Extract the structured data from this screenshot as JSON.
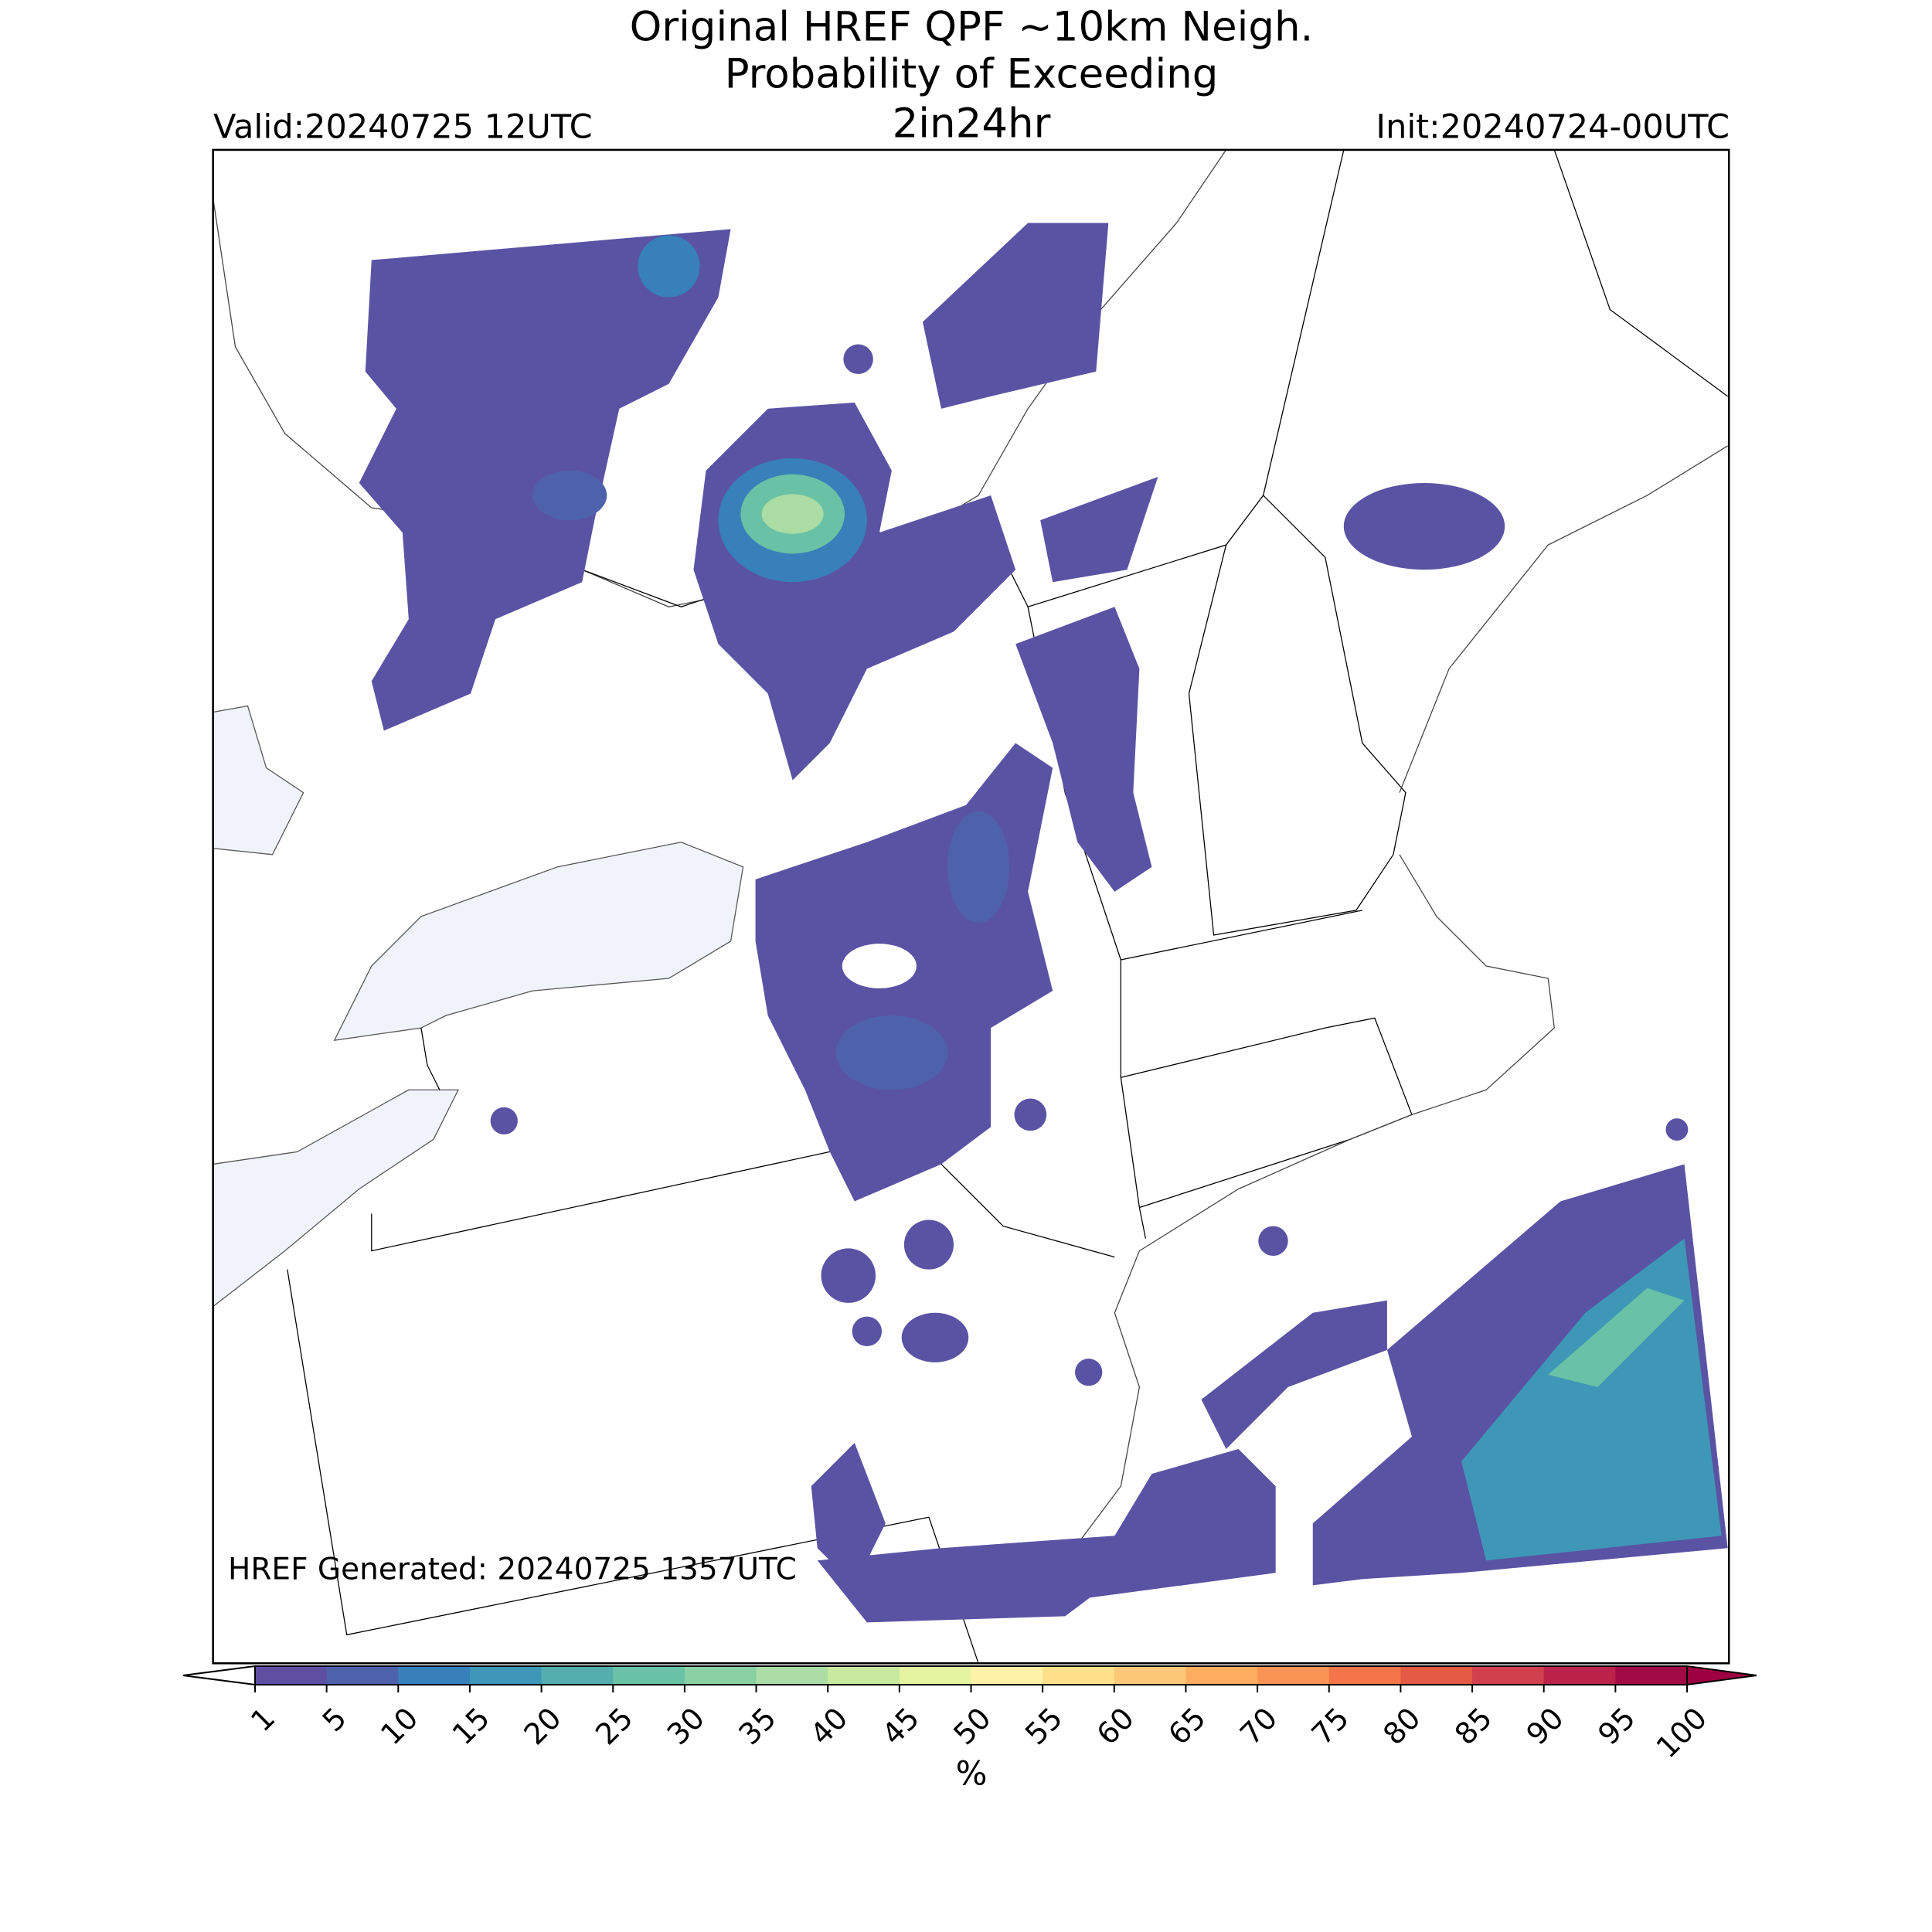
{
  "header": {
    "title_lines": [
      "Original HREF QPF ~10km Neigh.",
      "Probability of Exceeding",
      "2in24hr"
    ],
    "valid": "Valid:20240725 12UTC",
    "init": "Init:20240724-00UTC"
  },
  "footnote": "HREF Generated: 20240725 1357UTC",
  "colorbar": {
    "label": "%",
    "ticks": [
      1,
      5,
      10,
      15,
      20,
      25,
      30,
      35,
      40,
      45,
      50,
      55,
      60,
      65,
      70,
      75,
      80,
      85,
      90,
      95,
      100
    ],
    "colors": [
      "#5e4fa2",
      "#4e62ac",
      "#3880b9",
      "#3f97b7",
      "#54aead",
      "#69c2a5",
      "#89d0a4",
      "#aadca4",
      "#c8e99e",
      "#e4f4a0",
      "#fdf2a8",
      "#fee08b",
      "#fdc878",
      "#fdad60",
      "#f99353",
      "#f37549",
      "#e35a45",
      "#d0414d",
      "#bb2249",
      "#a10a45"
    ],
    "under_color": "#ffffff",
    "over_color": "#9e0142"
  }
}
